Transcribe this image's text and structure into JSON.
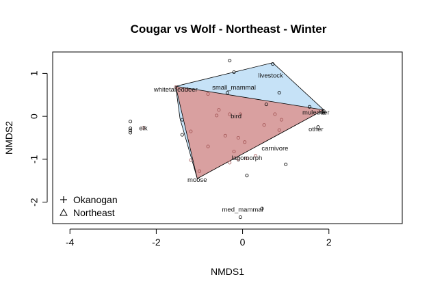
{
  "chart_data": {
    "type": "scatter",
    "title": "Cougar vs Wolf - Northeast - Winter",
    "xlabel": "NMDS1",
    "ylabel": "NMDS2",
    "xlim": [
      -4.4,
      3.7
    ],
    "ylim": [
      -2.5,
      1.5
    ],
    "xticks": [
      -4,
      -2,
      0,
      2
    ],
    "yticks": [
      -2,
      -1,
      0,
      1
    ],
    "colors": {
      "hull_okanogan": "#c6e2f7",
      "hull_northeast": "#d9a0a0",
      "point_okanogan": "#000000",
      "point_northeast": "#a05050"
    },
    "hulls": [
      {
        "series": "Okanogan",
        "color": "#c6e2f7",
        "points": [
          [
            -1.55,
            0.7
          ],
          [
            0.7,
            1.25
          ],
          [
            1.88,
            0.15
          ],
          [
            -1.05,
            -1.45
          ],
          [
            -1.45,
            -0.05
          ]
        ]
      },
      {
        "series": "Northeast",
        "color": "#d9a0a0",
        "points": [
          [
            -1.55,
            0.7
          ],
          [
            1.88,
            0.15
          ],
          [
            -1.05,
            -1.45
          ]
        ]
      }
    ],
    "series": [
      {
        "name": "Okanogan",
        "points": [
          [
            -0.3,
            1.3
          ],
          [
            -0.2,
            1.03
          ],
          [
            0.7,
            1.22
          ],
          [
            0.85,
            0.55
          ],
          [
            -0.35,
            0.55
          ],
          [
            0.55,
            0.28
          ],
          [
            1.55,
            0.22
          ],
          [
            1.88,
            0.12
          ],
          [
            1.85,
            0.1
          ],
          [
            1.88,
            0.08
          ],
          [
            1.75,
            -0.25
          ],
          [
            -2.6,
            -0.12
          ],
          [
            -2.6,
            -0.28
          ],
          [
            -2.6,
            -0.33
          ],
          [
            -2.6,
            -0.38
          ],
          [
            -1.4,
            -0.08
          ],
          [
            -1.4,
            -0.43
          ],
          [
            1.0,
            -1.12
          ],
          [
            0.1,
            -1.38
          ],
          [
            0.45,
            -2.15
          ],
          [
            -0.05,
            -2.35
          ]
        ]
      },
      {
        "name": "Northeast",
        "points": [
          [
            -1.55,
            0.68
          ],
          [
            -1.3,
            0.62
          ],
          [
            -0.8,
            0.52
          ],
          [
            -0.55,
            0.15
          ],
          [
            -0.6,
            0.02
          ],
          [
            -0.3,
            0.05
          ],
          [
            -0.05,
            0.05
          ],
          [
            0.75,
            0.05
          ],
          [
            0.9,
            -0.08
          ],
          [
            0.5,
            -0.2
          ],
          [
            0.85,
            -0.32
          ],
          [
            -1.2,
            -0.35
          ],
          [
            -0.4,
            -0.45
          ],
          [
            -0.1,
            -0.5
          ],
          [
            0.05,
            -0.6
          ],
          [
            -0.8,
            -0.7
          ],
          [
            -0.2,
            -0.82
          ],
          [
            0.3,
            -0.92
          ],
          [
            -0.1,
            -1.0
          ],
          [
            -0.3,
            -1.08
          ],
          [
            0.1,
            -0.98
          ],
          [
            -1.0,
            -1.28
          ],
          [
            -1.2,
            -1.02
          ],
          [
            -2.3,
            -0.27
          ]
        ]
      }
    ],
    "annotations": [
      {
        "label": "livestock",
        "x": 0.65,
        "y": 0.95
      },
      {
        "label": "whitetaileddeer",
        "x": -1.55,
        "y": 0.62
      },
      {
        "label": "small_mammal",
        "x": -0.2,
        "y": 0.67
      },
      {
        "label": "muledeer",
        "x": 1.7,
        "y": 0.09
      },
      {
        "label": "bird",
        "x": -0.15,
        "y": 0.0
      },
      {
        "label": "elk",
        "x": -2.3,
        "y": -0.28
      },
      {
        "label": "other",
        "x": 1.7,
        "y": -0.3
      },
      {
        "label": "carnivore",
        "x": 0.75,
        "y": -0.75
      },
      {
        "label": "lagomorph",
        "x": 0.1,
        "y": -0.97
      },
      {
        "label": "moose",
        "x": -1.05,
        "y": -1.48
      },
      {
        "label": "med_mammal",
        "x": 0.0,
        "y": -2.17
      }
    ],
    "legend": {
      "position": "bottom-left",
      "entries": [
        {
          "label": "Okanogan",
          "symbol": "plus"
        },
        {
          "label": "Northeast",
          "symbol": "triangle"
        }
      ]
    },
    "grid": false
  }
}
